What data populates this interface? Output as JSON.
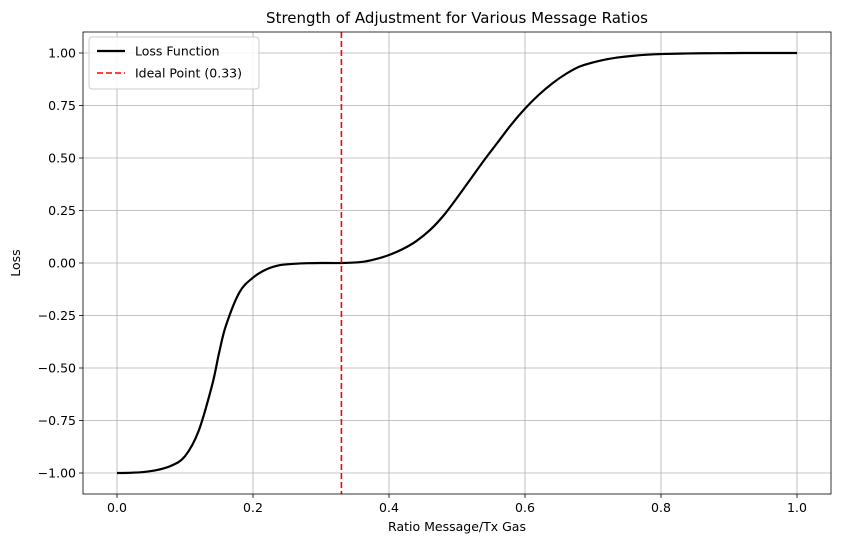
{
  "chart_data": {
    "type": "line",
    "title": "Strength of Adjustment for Various Message Ratios",
    "xlabel": "Ratio Message/Tx Gas",
    "ylabel": "Loss",
    "xlim": [
      -0.05,
      1.05
    ],
    "ylim": [
      -1.1,
      1.1
    ],
    "grid": true,
    "legend_position": "top-left",
    "x_ticks": [
      0.0,
      0.2,
      0.4,
      0.6,
      0.8,
      1.0
    ],
    "x_tick_labels": [
      "0.0",
      "0.2",
      "0.4",
      "0.6",
      "0.8",
      "1.0"
    ],
    "y_ticks": [
      -1.0,
      -0.75,
      -0.5,
      -0.25,
      0.0,
      0.25,
      0.5,
      0.75,
      1.0
    ],
    "y_tick_labels": [
      "−1.00",
      "−0.75",
      "−0.50",
      "−0.25",
      "0.00",
      "0.25",
      "0.50",
      "0.75",
      "1.00"
    ],
    "series": [
      {
        "name": "Loss Function",
        "color": "#000000",
        "style": "solid",
        "x": [
          0.0,
          0.02,
          0.04,
          0.06,
          0.08,
          0.1,
          0.12,
          0.14,
          0.15,
          0.16,
          0.18,
          0.2,
          0.22,
          0.24,
          0.26,
          0.28,
          0.3,
          0.33,
          0.36,
          0.38,
          0.4,
          0.42,
          0.44,
          0.46,
          0.48,
          0.5,
          0.52,
          0.54,
          0.56,
          0.58,
          0.6,
          0.62,
          0.64,
          0.66,
          0.68,
          0.7,
          0.72,
          0.74,
          0.76,
          0.78,
          0.8,
          0.84,
          0.88,
          0.92,
          0.96,
          1.0
        ],
        "y": [
          -1.0,
          -0.999,
          -0.995,
          -0.985,
          -0.965,
          -0.92,
          -0.8,
          -0.58,
          -0.43,
          -0.3,
          -0.14,
          -0.07,
          -0.03,
          -0.01,
          -0.004,
          -0.001,
          0.0,
          0.0,
          0.005,
          0.018,
          0.038,
          0.066,
          0.104,
          0.156,
          0.225,
          0.31,
          0.4,
          0.49,
          0.575,
          0.66,
          0.735,
          0.8,
          0.855,
          0.9,
          0.935,
          0.955,
          0.97,
          0.98,
          0.987,
          0.992,
          0.995,
          0.998,
          0.999,
          1.0,
          1.0,
          1.0
        ]
      },
      {
        "name": "Ideal Point (0.33)",
        "color": "#ff0000",
        "style": "dashed",
        "type": "vline",
        "x": 0.33
      }
    ]
  }
}
